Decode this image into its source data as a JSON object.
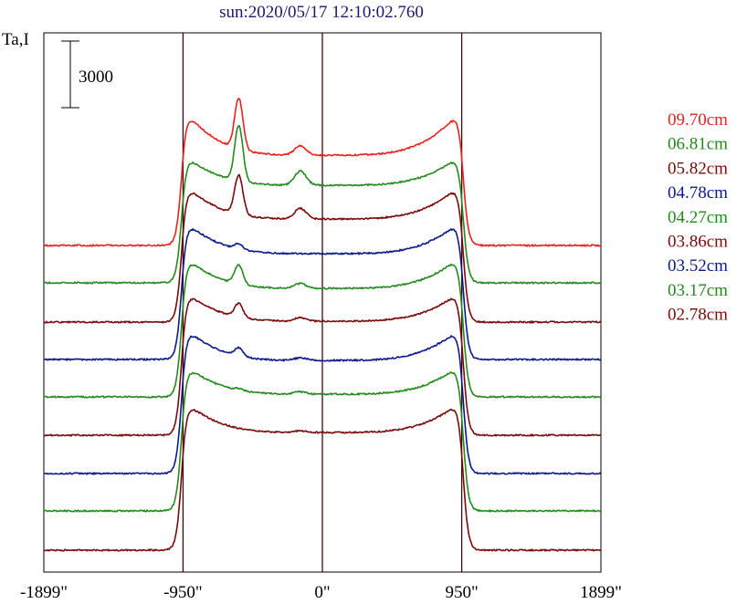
{
  "chart_data": {
    "type": "line",
    "title": "sun:2020/05/17 12:10:02.760",
    "title_color": "#1a1a6e",
    "ylabel": "Ta,I",
    "scale_bar_label": "3000",
    "xlim": [
      -1899,
      1899
    ],
    "x_ticks": [
      {
        "value": -1899,
        "label": "-1899\""
      },
      {
        "value": -950,
        "label": "-950\""
      },
      {
        "value": 0,
        "label": "0\""
      },
      {
        "value": 950,
        "label": "950\""
      },
      {
        "value": 1899,
        "label": "1899\""
      }
    ],
    "vertical_lines": [
      -950,
      0,
      950
    ],
    "vertical_line_color": "#3a0a0a",
    "grid": false,
    "legend_position": "right",
    "series": [
      {
        "name": "09.70cm",
        "color": "#e8221e",
        "baseline": 269,
        "plateau_center": 170,
        "plateau_edge": 118,
        "peak": 62,
        "bump": 90
      },
      {
        "name": "06.81cm",
        "color": "#238a1c",
        "baseline": 310,
        "plateau_center": 203,
        "plateau_edge": 168,
        "peak": 107,
        "bump": 124
      },
      {
        "name": "05.82cm",
        "color": "#7a0a0a",
        "baseline": 353,
        "plateau_center": 240,
        "plateau_edge": 200,
        "peak": 157,
        "bump": 167
      },
      {
        "name": "04.78cm",
        "color": "#0a1a8a",
        "baseline": 394,
        "plateau_center": 278,
        "plateau_edge": 240,
        "peak": 234,
        "bump": 244
      },
      {
        "name": "04.27cm",
        "color": "#238a1c",
        "baseline": 435,
        "plateau_center": 316,
        "plateau_edge": 279,
        "peak": 258,
        "bump": 264
      },
      {
        "name": "03.86cm",
        "color": "#7a0a0a",
        "baseline": 477,
        "plateau_center": 352,
        "plateau_edge": 317,
        "peak": 302,
        "bump": 306
      },
      {
        "name": "03.52cm",
        "color": "#0a1a8a",
        "baseline": 519,
        "plateau_center": 395,
        "plateau_edge": 357,
        "peak": 348,
        "bump": 349
      },
      {
        "name": "03.17cm",
        "color": "#238a1c",
        "baseline": 560,
        "plateau_center": 432,
        "plateau_edge": 398,
        "peak": 396,
        "bump": 390
      },
      {
        "name": "02.78cm",
        "color": "#7a0a0a",
        "baseline": 603,
        "plateau_center": 474,
        "plateau_edge": 438,
        "peak": 440,
        "bump": 433
      }
    ]
  }
}
